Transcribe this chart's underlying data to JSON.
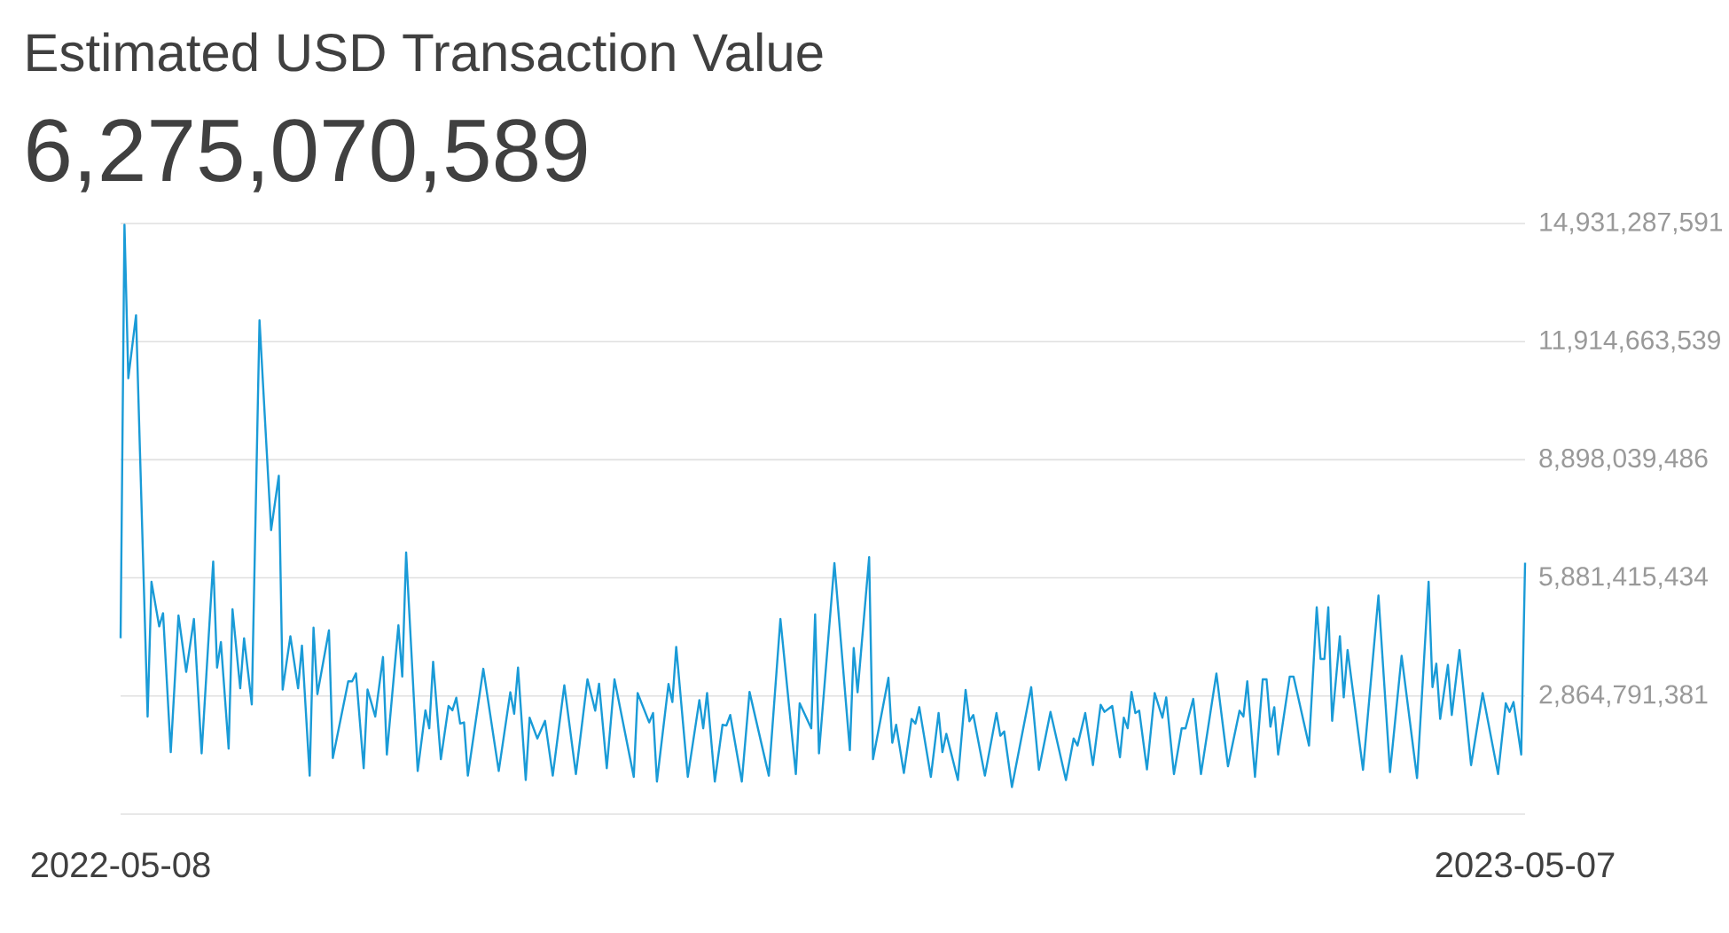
{
  "chart_data": {
    "type": "line",
    "title": "Estimated USD Transaction Value",
    "subtitle": "6,275,070,589",
    "color": "#1a9bd7",
    "grid": "y",
    "xlim": [
      "2022-05-08",
      "2023-05-07"
    ],
    "xticks": [
      "2022-05-08",
      "2023-05-07"
    ],
    "ylim": [
      -151832672,
      14931287591
    ],
    "yticks": [
      {
        "value": 2864791381,
        "label": "2,864,791,381"
      },
      {
        "value": 5881415434,
        "label": "5,881,415,434"
      },
      {
        "value": 8898039486,
        "label": "8,898,039,486"
      },
      {
        "value": 11914663539,
        "label": "11,914,663,539"
      },
      {
        "value": 14931287591,
        "label": "14,931,287,591"
      }
    ],
    "x": [
      "2022-05-08",
      "2022-05-09",
      "2022-05-10",
      "2022-05-12",
      "2022-05-15",
      "2022-05-16",
      "2022-05-18",
      "2022-05-19",
      "2022-05-21",
      "2022-05-23",
      "2022-05-25",
      "2022-05-27",
      "2022-05-29",
      "2022-06-01",
      "2022-06-02",
      "2022-06-03",
      "2022-06-05",
      "2022-06-06",
      "2022-06-08",
      "2022-06-09",
      "2022-06-11",
      "2022-06-13",
      "2022-06-16",
      "2022-06-18",
      "2022-06-19",
      "2022-06-21",
      "2022-06-23",
      "2022-06-24",
      "2022-06-26",
      "2022-06-27",
      "2022-06-28",
      "2022-07-01",
      "2022-07-02",
      "2022-07-06",
      "2022-07-07",
      "2022-07-08",
      "2022-07-10",
      "2022-07-11",
      "2022-07-13",
      "2022-07-15",
      "2022-07-16",
      "2022-07-19",
      "2022-07-20",
      "2022-07-21",
      "2022-07-24",
      "2022-07-26",
      "2022-07-27",
      "2022-07-28",
      "2022-07-30",
      "2022-08-01",
      "2022-08-02",
      "2022-08-03",
      "2022-08-04",
      "2022-08-05",
      "2022-08-06",
      "2022-08-10",
      "2022-08-14",
      "2022-08-17",
      "2022-08-18",
      "2022-08-19",
      "2022-08-21",
      "2022-08-22",
      "2022-08-24",
      "2022-08-26",
      "2022-08-28",
      "2022-08-31",
      "2022-09-03",
      "2022-09-06",
      "2022-09-08",
      "2022-09-09",
      "2022-09-11",
      "2022-09-13",
      "2022-09-18",
      "2022-09-19",
      "2022-09-22",
      "2022-09-23",
      "2022-09-24",
      "2022-09-27",
      "2022-09-28",
      "2022-09-29",
      "2022-10-02",
      "2022-10-05",
      "2022-10-06",
      "2022-10-07",
      "2022-10-09",
      "2022-10-11",
      "2022-10-12",
      "2022-10-13",
      "2022-10-16",
      "2022-10-18",
      "2022-10-23",
      "2022-10-26",
      "2022-10-30",
      "2022-10-31",
      "2022-11-03",
      "2022-11-04",
      "2022-11-05",
      "2022-11-09",
      "2022-11-13",
      "2022-11-14",
      "2022-11-15",
      "2022-11-18",
      "2022-11-19",
      "2022-11-23",
      "2022-11-24",
      "2022-11-25",
      "2022-11-27",
      "2022-11-29",
      "2022-11-30",
      "2022-12-01",
      "2022-12-04",
      "2022-12-06",
      "2022-12-07",
      "2022-12-08",
      "2022-12-11",
      "2022-12-13",
      "2022-12-14",
      "2022-12-15",
      "2022-12-18",
      "2022-12-21",
      "2022-12-22",
      "2022-12-23",
      "2022-12-25",
      "2022-12-30",
      "2023-01-01",
      "2023-01-04",
      "2023-01-08",
      "2023-01-10",
      "2023-01-11",
      "2023-01-13",
      "2023-01-15",
      "2023-01-17",
      "2023-01-18",
      "2023-01-20",
      "2023-01-22",
      "2023-01-23",
      "2023-01-24",
      "2023-01-25",
      "2023-01-26",
      "2023-01-27",
      "2023-01-29",
      "2023-01-31",
      "2023-02-02",
      "2023-02-03",
      "2023-02-05",
      "2023-02-07",
      "2023-02-08",
      "2023-02-10",
      "2023-02-12",
      "2023-02-16",
      "2023-02-19",
      "2023-02-22",
      "2023-02-23",
      "2023-02-24",
      "2023-02-26",
      "2023-02-28",
      "2023-03-01",
      "2023-03-02",
      "2023-03-03",
      "2023-03-04",
      "2023-03-07",
      "2023-03-08",
      "2023-03-12",
      "2023-03-14",
      "2023-03-15",
      "2023-03-16",
      "2023-03-17",
      "2023-03-18",
      "2023-03-20",
      "2023-03-21",
      "2023-03-22",
      "2023-03-26",
      "2023-03-30",
      "2023-04-02",
      "2023-04-05",
      "2023-04-09",
      "2023-04-12",
      "2023-04-13",
      "2023-04-14",
      "2023-04-15",
      "2023-04-17",
      "2023-04-18",
      "2023-04-20",
      "2023-04-23",
      "2023-04-26",
      "2023-04-30",
      "2023-05-02",
      "2023-05-03",
      "2023-05-04",
      "2023-05-06",
      "2023-05-07"
    ],
    "values": [
      4340000000.0,
      14900000000.0,
      10980000000.0,
      12590000000.0,
      2340000000.0,
      5780000000.0,
      4640000000.0,
      4980000000.0,
      1430000000.0,
      4920000000.0,
      3480000000.0,
      4830000000.0,
      1400000000.0,
      6300000000.0,
      3590000000.0,
      4240000000.0,
      1520000000.0,
      5080000000.0,
      3060000000.0,
      4340000000.0,
      2650000000.0,
      12460000000.0,
      7100000000.0,
      8490000000.0,
      3030000000.0,
      4390000000.0,
      3060000000.0,
      4150000000.0,
      830000000.0,
      4610000000.0,
      2910000000.0,
      4540000000.0,
      1280000000.0,
      3240000000.0,
      3240000000.0,
      3440000000.0,
      1020000000.0,
      3030000000.0,
      2340000000.0,
      3860000000.0,
      1370000000.0,
      4670000000.0,
      3360000000.0,
      6530000000.0,
      950000000.0,
      2500000000.0,
      2040000000.0,
      3740000000.0,
      1250000000.0,
      2610000000.0,
      2500000000.0,
      2820000000.0,
      2160000000.0,
      2190000000.0,
      830000000.0,
      3560000000.0,
      950000000.0,
      2960000000.0,
      2410000000.0,
      3590000000.0,
      720000000.0,
      2310000000.0,
      1780000000.0,
      2230000000.0,
      830000000.0,
      3140000000.0,
      870000000.0,
      3290000000.0,
      2490000000.0,
      3180000000.0,
      1020000000.0,
      3290000000.0,
      800000000.0,
      2940000000.0,
      2190000000.0,
      2430000000.0,
      680000000.0,
      3170000000.0,
      2710000000.0,
      4120000000.0,
      800000000.0,
      2760000000.0,
      2040000000.0,
      2940000000.0,
      680000000.0,
      2130000000.0,
      2110000000.0,
      2380000000.0,
      680000000.0,
      2970000000.0,
      830000000.0,
      4830000000.0,
      870000000.0,
      2680000000.0,
      2040000000.0,
      4950000000.0,
      1400000000.0,
      6260000000.0,
      1480000000.0,
      4090000000.0,
      2960000000.0,
      6410000000.0,
      1250000000.0,
      3330000000.0,
      1670000000.0,
      2130000000.0,
      900000000.0,
      2280000000.0,
      2160000000.0,
      2580000000.0,
      800000000.0,
      2430000000.0,
      1430000000.0,
      1900000000.0,
      720000000.0,
      3020000000.0,
      2220000000.0,
      2380000000.0,
      830000000.0,
      2430000000.0,
      1850000000.0,
      1960000000.0,
      540000000.0,
      3090000000.0,
      980000000.0,
      2460000000.0,
      720000000.0,
      1780000000.0,
      1600000000.0,
      2430000000.0,
      1100000000.0,
      2640000000.0,
      2460000000.0,
      2610000000.0,
      1300000000.0,
      2310000000.0,
      2040000000.0,
      2970000000.0,
      2430000000.0,
      2490000000.0,
      990000000.0,
      2940000000.0,
      2310000000.0,
      2830000000.0,
      870000000.0,
      2040000000.0,
      2040000000.0,
      2790000000.0,
      870000000.0,
      3440000000.0,
      1070000000.0,
      2490000000.0,
      2340000000.0,
      3240000000.0,
      800000000.0,
      3290000000.0,
      3290000000.0,
      2080000000.0,
      2580000000.0,
      1370000000.0,
      3360000000.0,
      3360000000.0,
      1600000000.0,
      5130000000.0,
      3810000000.0,
      3810000000.0,
      5130000000.0,
      2230000000.0,
      4390000000.0,
      2830000000.0,
      4040000000.0,
      980000000.0,
      5430000000.0,
      920000000.0,
      3890000000.0,
      770000000.0,
      5780000000.0,
      3090000000.0,
      3690000000.0,
      2280000000.0,
      3660000000.0,
      2380000000.0,
      4040000000.0,
      1100000000.0,
      2940000000.0,
      870000000.0,
      2680000000.0,
      2460000000.0,
      2710000000.0,
      1370000000.0,
      6270000000.0
    ]
  }
}
